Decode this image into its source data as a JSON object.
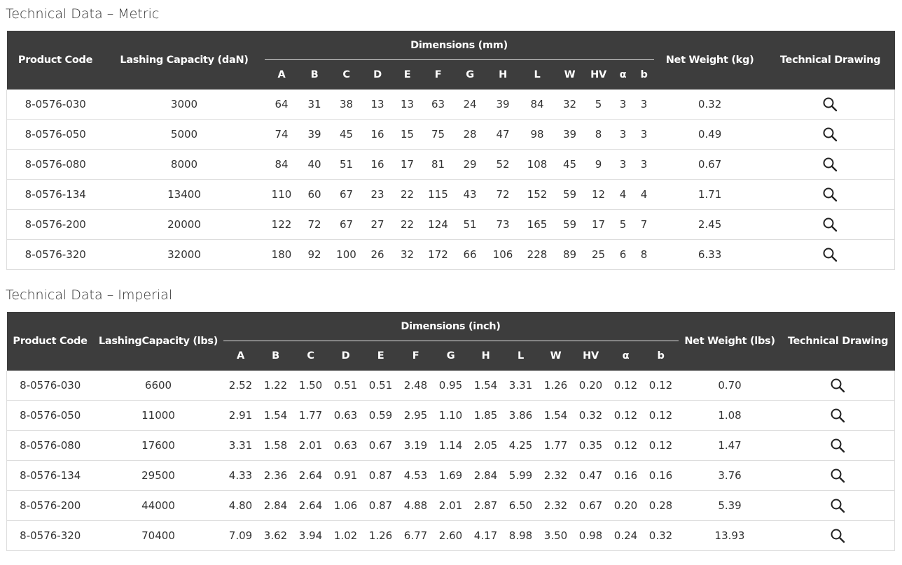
{
  "metric": {
    "title": "Technical Data – Metric",
    "columns": {
      "product_code": "Product Code",
      "capacity": "Lashing Capacity (daN)",
      "dimensions": "Dimensions (mm)",
      "dim_labels": [
        "A",
        "B",
        "C",
        "D",
        "E",
        "F",
        "G",
        "H",
        "L",
        "W",
        "HV",
        "α",
        "b"
      ],
      "net_weight": "Net Weight (kg)",
      "drawing": "Technical Drawing"
    },
    "rows": [
      [
        "8-0576-030",
        "3000",
        "64",
        "31",
        "38",
        "13",
        "13",
        "63",
        "24",
        "39",
        "84",
        "32",
        "5",
        "3",
        "3",
        "0.32"
      ],
      [
        "8-0576-050",
        "5000",
        "74",
        "39",
        "45",
        "16",
        "15",
        "75",
        "28",
        "47",
        "98",
        "39",
        "8",
        "3",
        "3",
        "0.49"
      ],
      [
        "8-0576-080",
        "8000",
        "84",
        "40",
        "51",
        "16",
        "17",
        "81",
        "29",
        "52",
        "108",
        "45",
        "9",
        "3",
        "3",
        "0.67"
      ],
      [
        "8-0576-134",
        "13400",
        "110",
        "60",
        "67",
        "23",
        "22",
        "115",
        "43",
        "72",
        "152",
        "59",
        "12",
        "4",
        "4",
        "1.71"
      ],
      [
        "8-0576-200",
        "20000",
        "122",
        "72",
        "67",
        "27",
        "22",
        "124",
        "51",
        "73",
        "165",
        "59",
        "17",
        "5",
        "7",
        "2.45"
      ],
      [
        "8-0576-320",
        "32000",
        "180",
        "92",
        "100",
        "26",
        "32",
        "172",
        "66",
        "106",
        "228",
        "89",
        "25",
        "6",
        "8",
        "6.33"
      ]
    ]
  },
  "imperial": {
    "title": "Technical Data – Imperial",
    "columns": {
      "product_code": "Product Code",
      "capacity": "LashingCapacity (lbs)",
      "dimensions": "Dimensions (inch)",
      "dim_labels": [
        "A",
        "B",
        "C",
        "D",
        "E",
        "F",
        "G",
        "H",
        "L",
        "W",
        "HV",
        "α",
        "b"
      ],
      "net_weight": "Net Weight (lbs)",
      "drawing": "Technical Drawing"
    },
    "rows": [
      [
        "8-0576-030",
        "6600",
        "2.52",
        "1.22",
        "1.50",
        "0.51",
        "0.51",
        "2.48",
        "0.95",
        "1.54",
        "3.31",
        "1.26",
        "0.20",
        "0.12",
        "0.12",
        "0.70"
      ],
      [
        "8-0576-050",
        "11000",
        "2.91",
        "1.54",
        "1.77",
        "0.63",
        "0.59",
        "2.95",
        "1.10",
        "1.85",
        "3.86",
        "1.54",
        "0.32",
        "0.12",
        "0.12",
        "1.08"
      ],
      [
        "8-0576-080",
        "17600",
        "3.31",
        "1.58",
        "2.01",
        "0.63",
        "0.67",
        "3.19",
        "1.14",
        "2.05",
        "4.25",
        "1.77",
        "0.35",
        "0.12",
        "0.12",
        "1.47"
      ],
      [
        "8-0576-134",
        "29500",
        "4.33",
        "2.36",
        "2.64",
        "0.91",
        "0.87",
        "4.53",
        "1.69",
        "2.84",
        "5.99",
        "2.32",
        "0.47",
        "0.16",
        "0.16",
        "3.76"
      ],
      [
        "8-0576-200",
        "44000",
        "4.80",
        "2.84",
        "2.64",
        "1.06",
        "0.87",
        "4.88",
        "2.01",
        "2.87",
        "6.50",
        "2.32",
        "0.67",
        "0.20",
        "0.28",
        "5.39"
      ],
      [
        "8-0576-320",
        "70400",
        "7.09",
        "3.62",
        "3.94",
        "1.02",
        "1.26",
        "6.77",
        "2.60",
        "4.17",
        "8.98",
        "3.50",
        "0.98",
        "0.24",
        "0.32",
        "13.93"
      ]
    ]
  }
}
